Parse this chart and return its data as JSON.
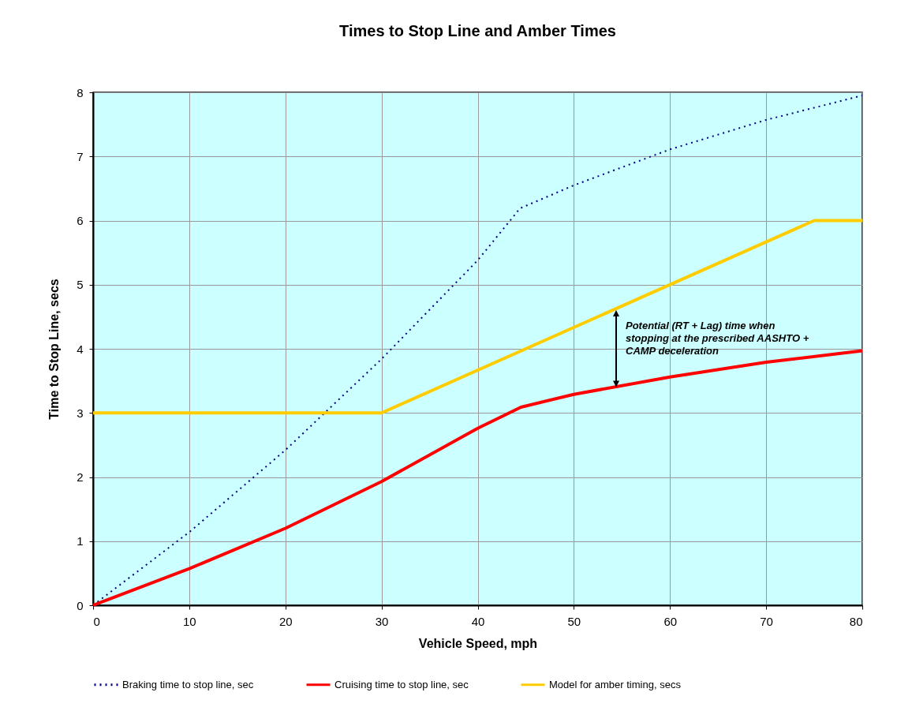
{
  "chart_data": {
    "type": "line",
    "title": "Times to Stop Line and Amber Times",
    "xlabel": "Vehicle Speed, mph",
    "ylabel": "Time to Stop Line, secs",
    "xlim": [
      0,
      80
    ],
    "xticks": [
      0,
      10,
      20,
      30,
      40,
      50,
      60,
      70,
      80
    ],
    "ylim": [
      0,
      8
    ],
    "yticks": [
      0,
      1,
      2,
      3,
      4,
      5,
      6,
      7,
      8
    ],
    "grid": true,
    "legend": "bottom",
    "marker": "none",
    "series": [
      {
        "name": "Braking time to stop line, sec",
        "color": "#000080",
        "line_style": "dotted",
        "x": [
          0,
          10,
          20,
          30,
          40,
          44.4,
          50,
          60,
          70,
          80
        ],
        "values": [
          0,
          1.14,
          2.42,
          3.84,
          5.38,
          6.19,
          6.55,
          7.11,
          7.57,
          7.95
        ]
      },
      {
        "name": "Cruising time to stop line, sec",
        "color": "#ff0000",
        "line_style": "solid",
        "x": [
          0,
          10,
          20,
          30,
          40,
          44.5,
          50,
          60,
          70,
          80
        ],
        "values": [
          0,
          0.57,
          1.2,
          1.93,
          2.76,
          3.09,
          3.29,
          3.56,
          3.79,
          3.97
        ]
      },
      {
        "name": "Model for amber timing, secs",
        "color": "#ffcc00",
        "line_style": "solid",
        "x": [
          0,
          30,
          75,
          80
        ],
        "values": [
          3,
          3,
          6,
          6
        ]
      }
    ],
    "annotations": [
      "Potential (RT + Lag) time when stopping at the prescribed AASHTO + CAMP deceleration"
    ]
  }
}
